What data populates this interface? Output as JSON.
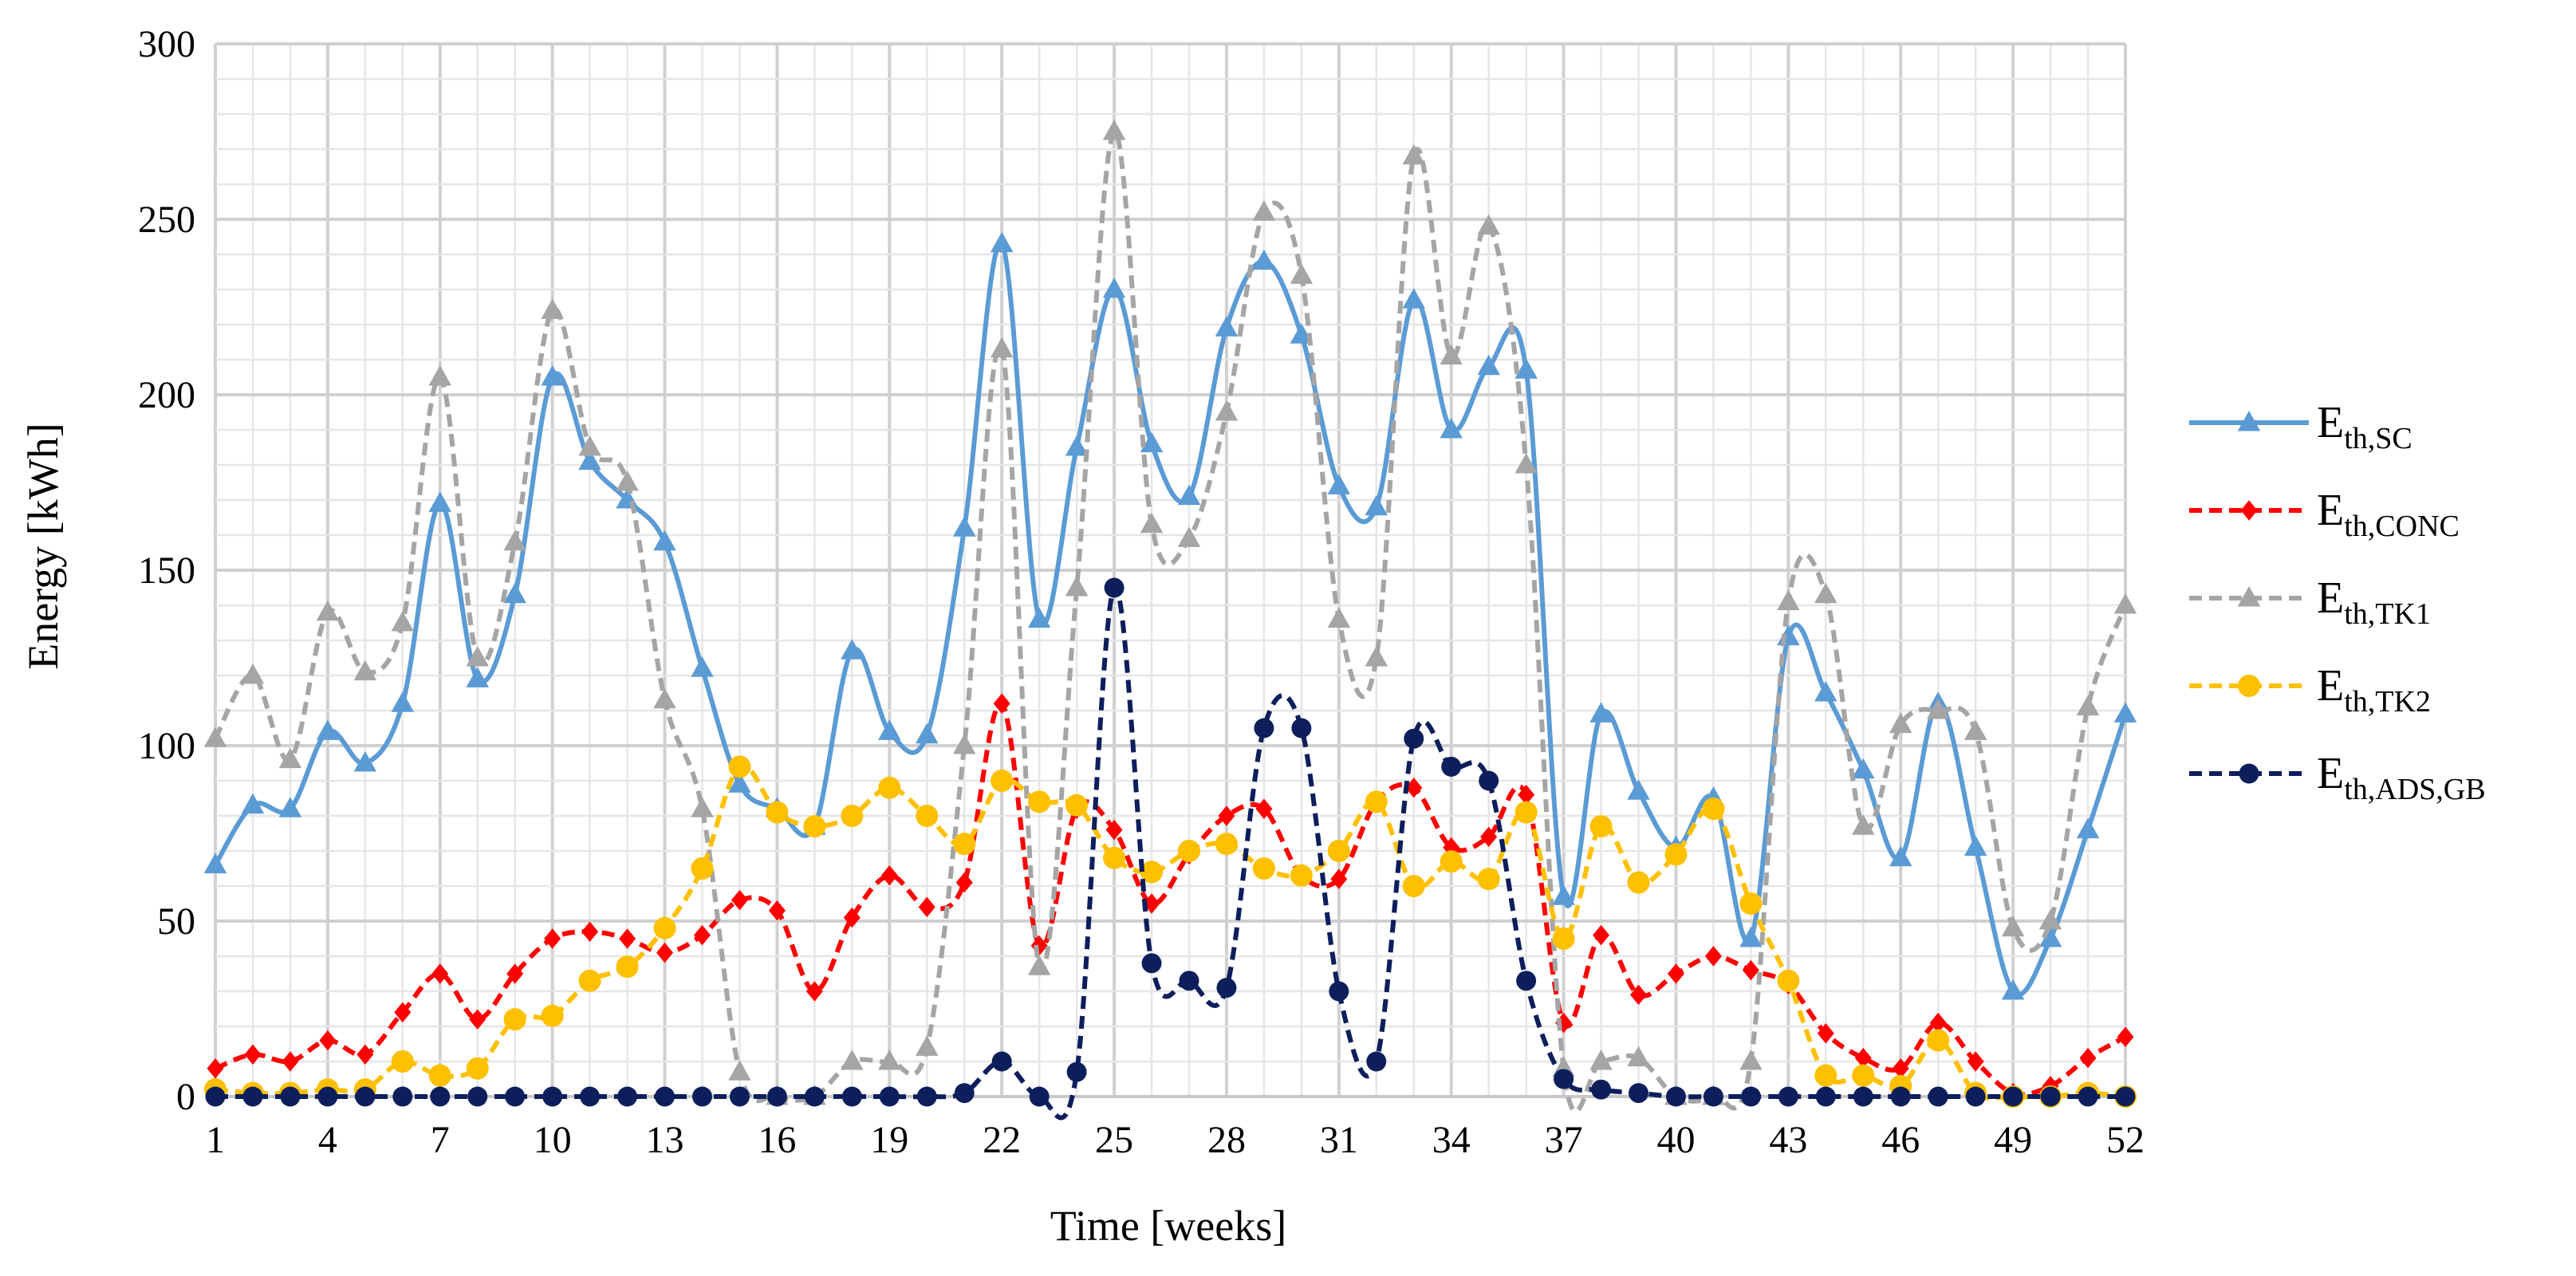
{
  "chart_data": {
    "type": "line",
    "title": "",
    "xlabel": "Time [weeks]",
    "ylabel": "Energy [kWh]",
    "xlim": [
      1,
      52
    ],
    "ylim": [
      0,
      300
    ],
    "x_ticks": [
      "1",
      "4",
      "7",
      "10",
      "13",
      "16",
      "19",
      "22",
      "25",
      "28",
      "31",
      "34",
      "37",
      "40",
      "43",
      "46",
      "49",
      "52"
    ],
    "y_ticks": [
      "0",
      "50",
      "100",
      "150",
      "200",
      "250",
      "300"
    ],
    "grid": true,
    "legend_position": "right",
    "x": [
      1,
      2,
      3,
      4,
      5,
      6,
      7,
      8,
      9,
      10,
      11,
      12,
      13,
      14,
      15,
      16,
      17,
      18,
      19,
      20,
      21,
      22,
      23,
      24,
      25,
      26,
      27,
      28,
      29,
      30,
      31,
      32,
      33,
      34,
      35,
      36,
      37,
      38,
      39,
      40,
      41,
      42,
      43,
      44,
      45,
      46,
      47,
      48,
      49,
      50,
      51,
      52
    ],
    "series": [
      {
        "key": "sc",
        "name": "E",
        "subscript": "th,SC",
        "color": "#5b9bd5",
        "dash": "solid",
        "marker": "triangle",
        "values": [
          66,
          83,
          82,
          104,
          95,
          112,
          169,
          119,
          143,
          205,
          181,
          170,
          158,
          122,
          89,
          82,
          77,
          127,
          104,
          103,
          162,
          243,
          136,
          185,
          230,
          186,
          171,
          219,
          238,
          217,
          174,
          168,
          227,
          190,
          208,
          207,
          57,
          109,
          87,
          71,
          85,
          45,
          131,
          115,
          93,
          68,
          112,
          71,
          30,
          45,
          76,
          109
        ]
      },
      {
        "key": "conc",
        "name": "E",
        "subscript": "th,CONC",
        "color": "#ff0000",
        "dash": "dashed",
        "marker": "diamond",
        "values": [
          8,
          12,
          10,
          16,
          12,
          24,
          35,
          22,
          35,
          45,
          47,
          45,
          41,
          46,
          56,
          53,
          30,
          51,
          63,
          54,
          61,
          112,
          43,
          82,
          76,
          55,
          69,
          80,
          82,
          63,
          62,
          84,
          88,
          71,
          74,
          86,
          21,
          46,
          29,
          35,
          40,
          36,
          32,
          18,
          11,
          8,
          21,
          10,
          1,
          3,
          11,
          17
        ]
      },
      {
        "key": "tk1",
        "name": "E",
        "subscript": "th,TK1",
        "color": "#a5a5a5",
        "dash": "dashed",
        "marker": "triangle",
        "values": [
          102,
          120,
          96,
          138,
          121,
          135,
          205,
          125,
          158,
          224,
          185,
          175,
          113,
          82,
          7,
          0,
          0,
          10,
          10,
          14,
          100,
          213,
          37,
          145,
          275,
          163,
          159,
          195,
          252,
          234,
          136,
          125,
          268,
          211,
          248,
          180,
          8,
          10,
          11,
          0,
          0,
          10,
          141,
          143,
          77,
          106,
          110,
          104,
          48,
          50,
          111,
          140
        ]
      },
      {
        "key": "tk2",
        "name": "E",
        "subscript": "th,TK2",
        "color": "#ffc000",
        "dash": "dashed",
        "marker": "circle",
        "values": [
          2,
          1,
          1,
          2,
          2,
          10,
          6,
          8,
          22,
          23,
          33,
          37,
          48,
          65,
          94,
          81,
          77,
          80,
          88,
          80,
          72,
          90,
          84,
          83,
          68,
          64,
          70,
          72,
          65,
          63,
          70,
          84,
          60,
          67,
          62,
          81,
          45,
          77,
          61,
          69,
          82,
          55,
          33,
          6,
          6,
          3,
          16,
          1,
          0,
          0,
          1,
          0
        ]
      },
      {
        "key": "ads",
        "name": "E",
        "subscript": "th,ADS,GB",
        "color": "#0c1e5b",
        "dash": "dashed",
        "marker": "circle",
        "values": [
          0,
          0,
          0,
          0,
          0,
          0,
          0,
          0,
          0,
          0,
          0,
          0,
          0,
          0,
          0,
          0,
          0,
          0,
          0,
          0,
          1,
          10,
          0,
          7,
          145,
          38,
          33,
          31,
          105,
          105,
          30,
          10,
          102,
          94,
          90,
          33,
          5,
          2,
          1,
          0,
          0,
          0,
          0,
          0,
          0,
          0,
          0,
          0,
          0,
          0,
          0,
          0
        ]
      }
    ]
  }
}
